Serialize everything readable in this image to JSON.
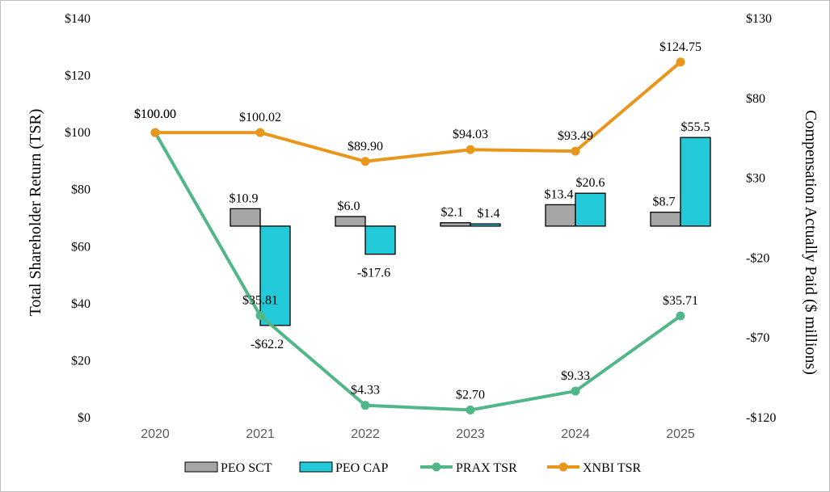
{
  "chart_data": {
    "type": "bar",
    "categories": [
      "2020",
      "2021",
      "2022",
      "2023",
      "2024",
      "2025"
    ],
    "y_left": {
      "label": "Total Shareholder Return (TSR)",
      "lim": [
        0,
        140
      ],
      "ticks": [
        0,
        20,
        40,
        60,
        80,
        100,
        120,
        140
      ],
      "tick_labels": [
        "$0",
        "$20",
        "$40",
        "$60",
        "$80",
        "$100",
        "$120",
        "$140"
      ]
    },
    "y_right": {
      "label": "Compensation Actually Paid ($ millions)",
      "lim": [
        -120,
        130
      ],
      "ticks": [
        -120,
        -70,
        -20,
        30,
        80,
        130
      ],
      "tick_labels": [
        "-$120",
        "-$70",
        "-$20",
        "$30",
        "$80",
        "$130"
      ]
    },
    "bars": [
      {
        "name": "PEO SCT",
        "axis": "right",
        "color": "#a6a6a6",
        "values": [
          null,
          10.9,
          6.0,
          2.1,
          13.4,
          8.7
        ],
        "labels": [
          "",
          "$10.9",
          "$6.0",
          "$2.1",
          "$13.4",
          "$8.7"
        ]
      },
      {
        "name": "PEO CAP",
        "axis": "right",
        "color": "#22c9d9",
        "values": [
          null,
          -62.2,
          -17.6,
          1.4,
          20.6,
          55.5
        ],
        "labels": [
          "",
          "-$62.2",
          "-$17.6",
          "$1.4",
          "$20.6",
          "$55.5"
        ]
      }
    ],
    "lines": [
      {
        "name": "PRAX TSR",
        "axis": "left",
        "color": "#52b788",
        "values": [
          100.0,
          35.81,
          4.33,
          2.7,
          9.33,
          35.71
        ],
        "labels": [
          "$100.00",
          "$35.81",
          "$4.33",
          "$2.70",
          "$9.33",
          "$35.71"
        ]
      },
      {
        "name": "XNBI TSR",
        "axis": "left",
        "color": "#e8961c",
        "values": [
          100.0,
          100.02,
          89.9,
          94.03,
          93.49,
          124.75
        ],
        "labels": [
          "$100.00",
          "$100.02",
          "$89.90",
          "$94.03",
          "$93.49",
          "$124.75"
        ]
      }
    ],
    "legend": {
      "position": "bottom",
      "items": [
        "PEO SCT",
        "PEO CAP",
        "PRAX TSR",
        "XNBI TSR"
      ]
    }
  }
}
